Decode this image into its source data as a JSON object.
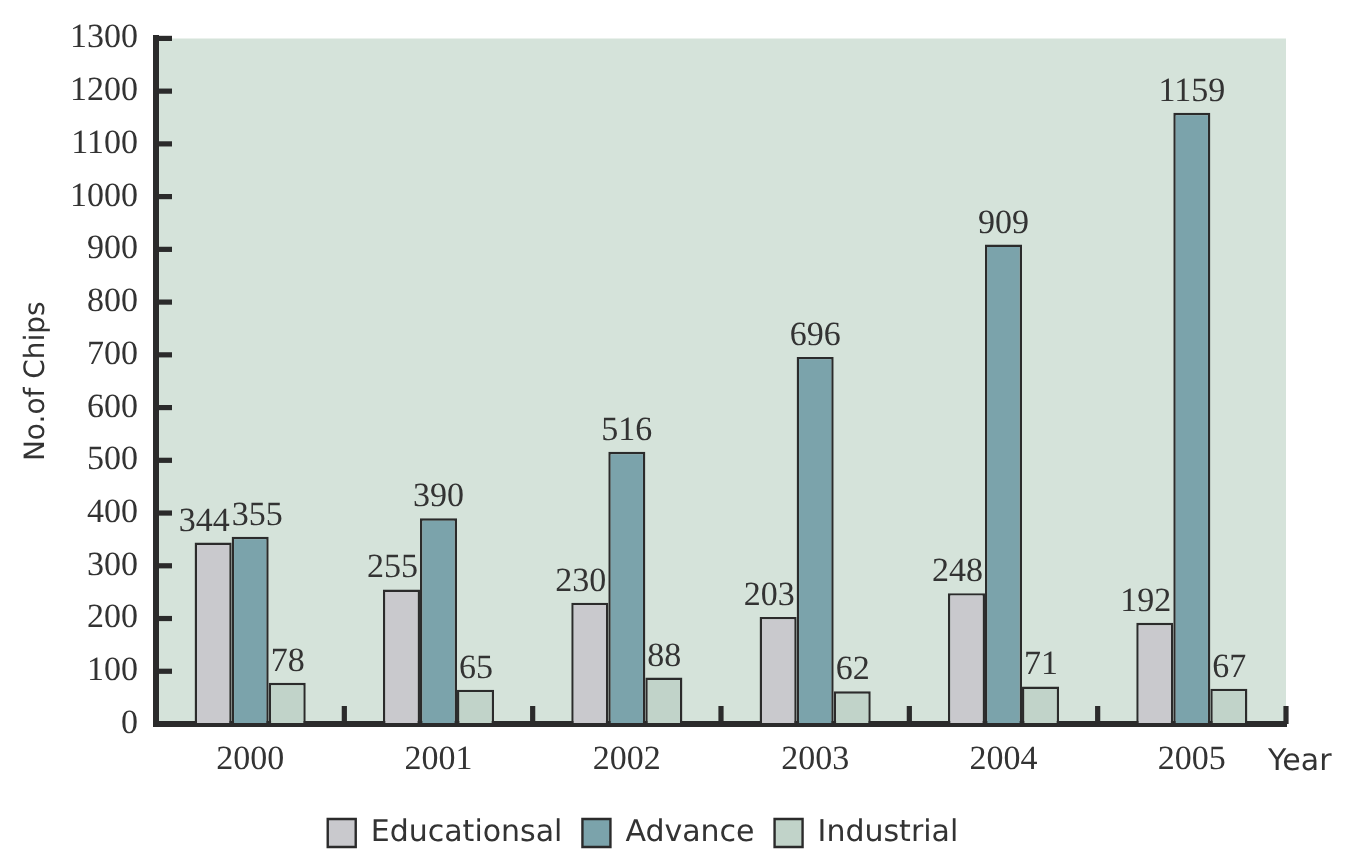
{
  "chart_data": {
    "type": "bar",
    "xlabel": "Year",
    "ylabel": "No.of Chips",
    "categories": [
      "2000",
      "2001",
      "2002",
      "2003",
      "2004",
      "2005"
    ],
    "series": [
      {
        "name": "Educationsal",
        "color": "#c9c9cd",
        "values": [
          344,
          255,
          230,
          203,
          248,
          192
        ]
      },
      {
        "name": "Advance",
        "color": "#7ba3ab",
        "values": [
          355,
          390,
          516,
          696,
          909,
          1159
        ]
      },
      {
        "name": "Industrial",
        "color": "#c1d3c9",
        "values": [
          78,
          65,
          88,
          62,
          71,
          67
        ]
      }
    ],
    "ylim": [
      0,
      1300
    ],
    "yticks": [
      0,
      100,
      200,
      300,
      400,
      500,
      600,
      700,
      800,
      900,
      1000,
      1100,
      1200,
      1300
    ],
    "grid": false,
    "legend": "bottom",
    "data_labels": true
  }
}
